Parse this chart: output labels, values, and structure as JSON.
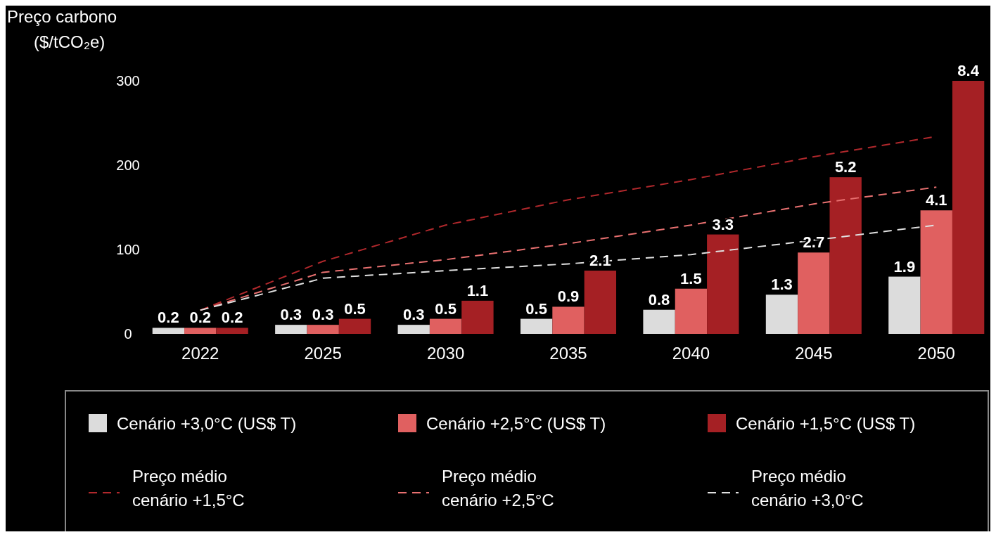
{
  "chart_data": {
    "type": "bar",
    "ylabel": "Preço carbono ($/tCO₂e)",
    "categories": [
      "2022",
      "2025",
      "2030",
      "2035",
      "2040",
      "2045",
      "2050"
    ],
    "ylim": [
      0,
      300
    ],
    "yticks": [
      0,
      100,
      200,
      300
    ],
    "grid": false,
    "legend": "bottom",
    "series": [
      {
        "name": "Cenário +3,0°C (US$ T)",
        "color": "#dcdcdc",
        "axis": "y2",
        "values": [
          0.2,
          0.3,
          0.3,
          0.5,
          0.8,
          1.3,
          1.9
        ],
        "value_labels": [
          "0.2",
          "0.3",
          "0.3",
          "0.5",
          "0.8",
          "1.3",
          "1.9"
        ]
      },
      {
        "name": "Cenário +2,5°C (US$ T)",
        "color": "#e06060",
        "axis": "y2",
        "values": [
          0.2,
          0.3,
          0.5,
          0.9,
          1.5,
          2.7,
          4.1
        ],
        "value_labels": [
          "0.2",
          "0.3",
          "0.5",
          "0.9",
          "1.5",
          "2.7",
          "4.1"
        ]
      },
      {
        "name": "Cenário +1,5°C (US$ T)",
        "color": "#a52024",
        "axis": "y2",
        "values": [
          0.2,
          0.5,
          1.1,
          2.1,
          3.3,
          5.2,
          8.4
        ],
        "value_labels": [
          "0.2",
          "0.5",
          "1.1",
          "2.1",
          "3.3",
          "5.2",
          "8.4"
        ]
      },
      {
        "name": "Preço médio cenário +1,5°C",
        "type": "line",
        "line_style": "dashed",
        "marker": "none",
        "color": "#b0282c",
        "values": [
          28,
          86,
          129,
          159,
          183,
          210,
          234
        ]
      },
      {
        "name": "Preço médio cenário +2,5°C",
        "type": "line",
        "line_style": "dashed",
        "marker": "none",
        "color": "#e87070",
        "values": [
          28,
          73,
          88,
          107,
          129,
          154,
          174
        ]
      },
      {
        "name": "Preço médio cenário +3,0°C",
        "type": "line",
        "line_style": "dashed",
        "marker": "none",
        "color": "#e0e0e0",
        "values": [
          28,
          66,
          75,
          83,
          94,
          111,
          129
        ]
      }
    ]
  }
}
